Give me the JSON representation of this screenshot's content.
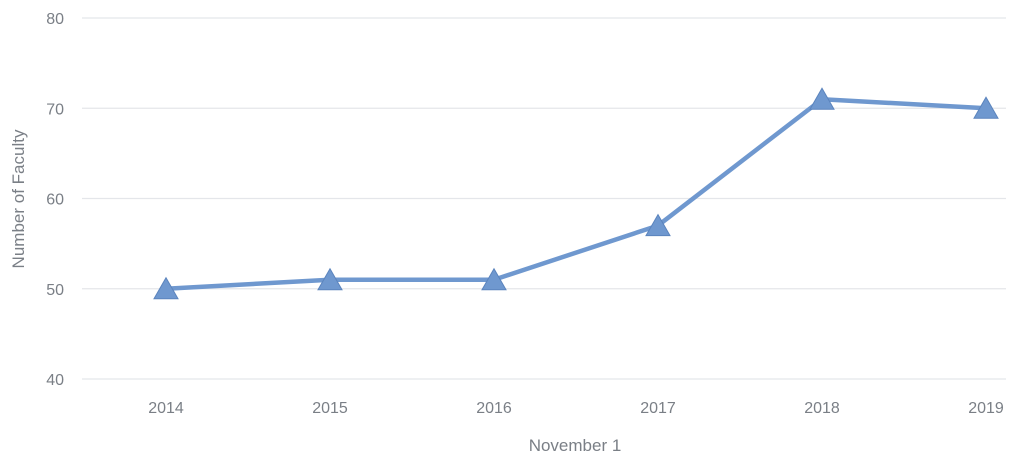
{
  "chart_data": {
    "type": "line",
    "categories": [
      "2014",
      "2015",
      "2016",
      "2017",
      "2018",
      "2019"
    ],
    "series": [
      {
        "values": [
          50,
          51,
          51,
          57,
          71,
          70
        ]
      }
    ],
    "title": "",
    "xlabel": "November 1",
    "ylabel": "Number of Faculty",
    "ylim": [
      40,
      80
    ],
    "yticks": [
      40,
      50,
      60,
      70,
      80
    ],
    "grid": true,
    "legend": "none",
    "marker": "triangle",
    "colors": {
      "series": "#6f98cf",
      "marker": "#6f98cf",
      "grid": "#e4e6ea",
      "text": "#7a7f86"
    }
  }
}
